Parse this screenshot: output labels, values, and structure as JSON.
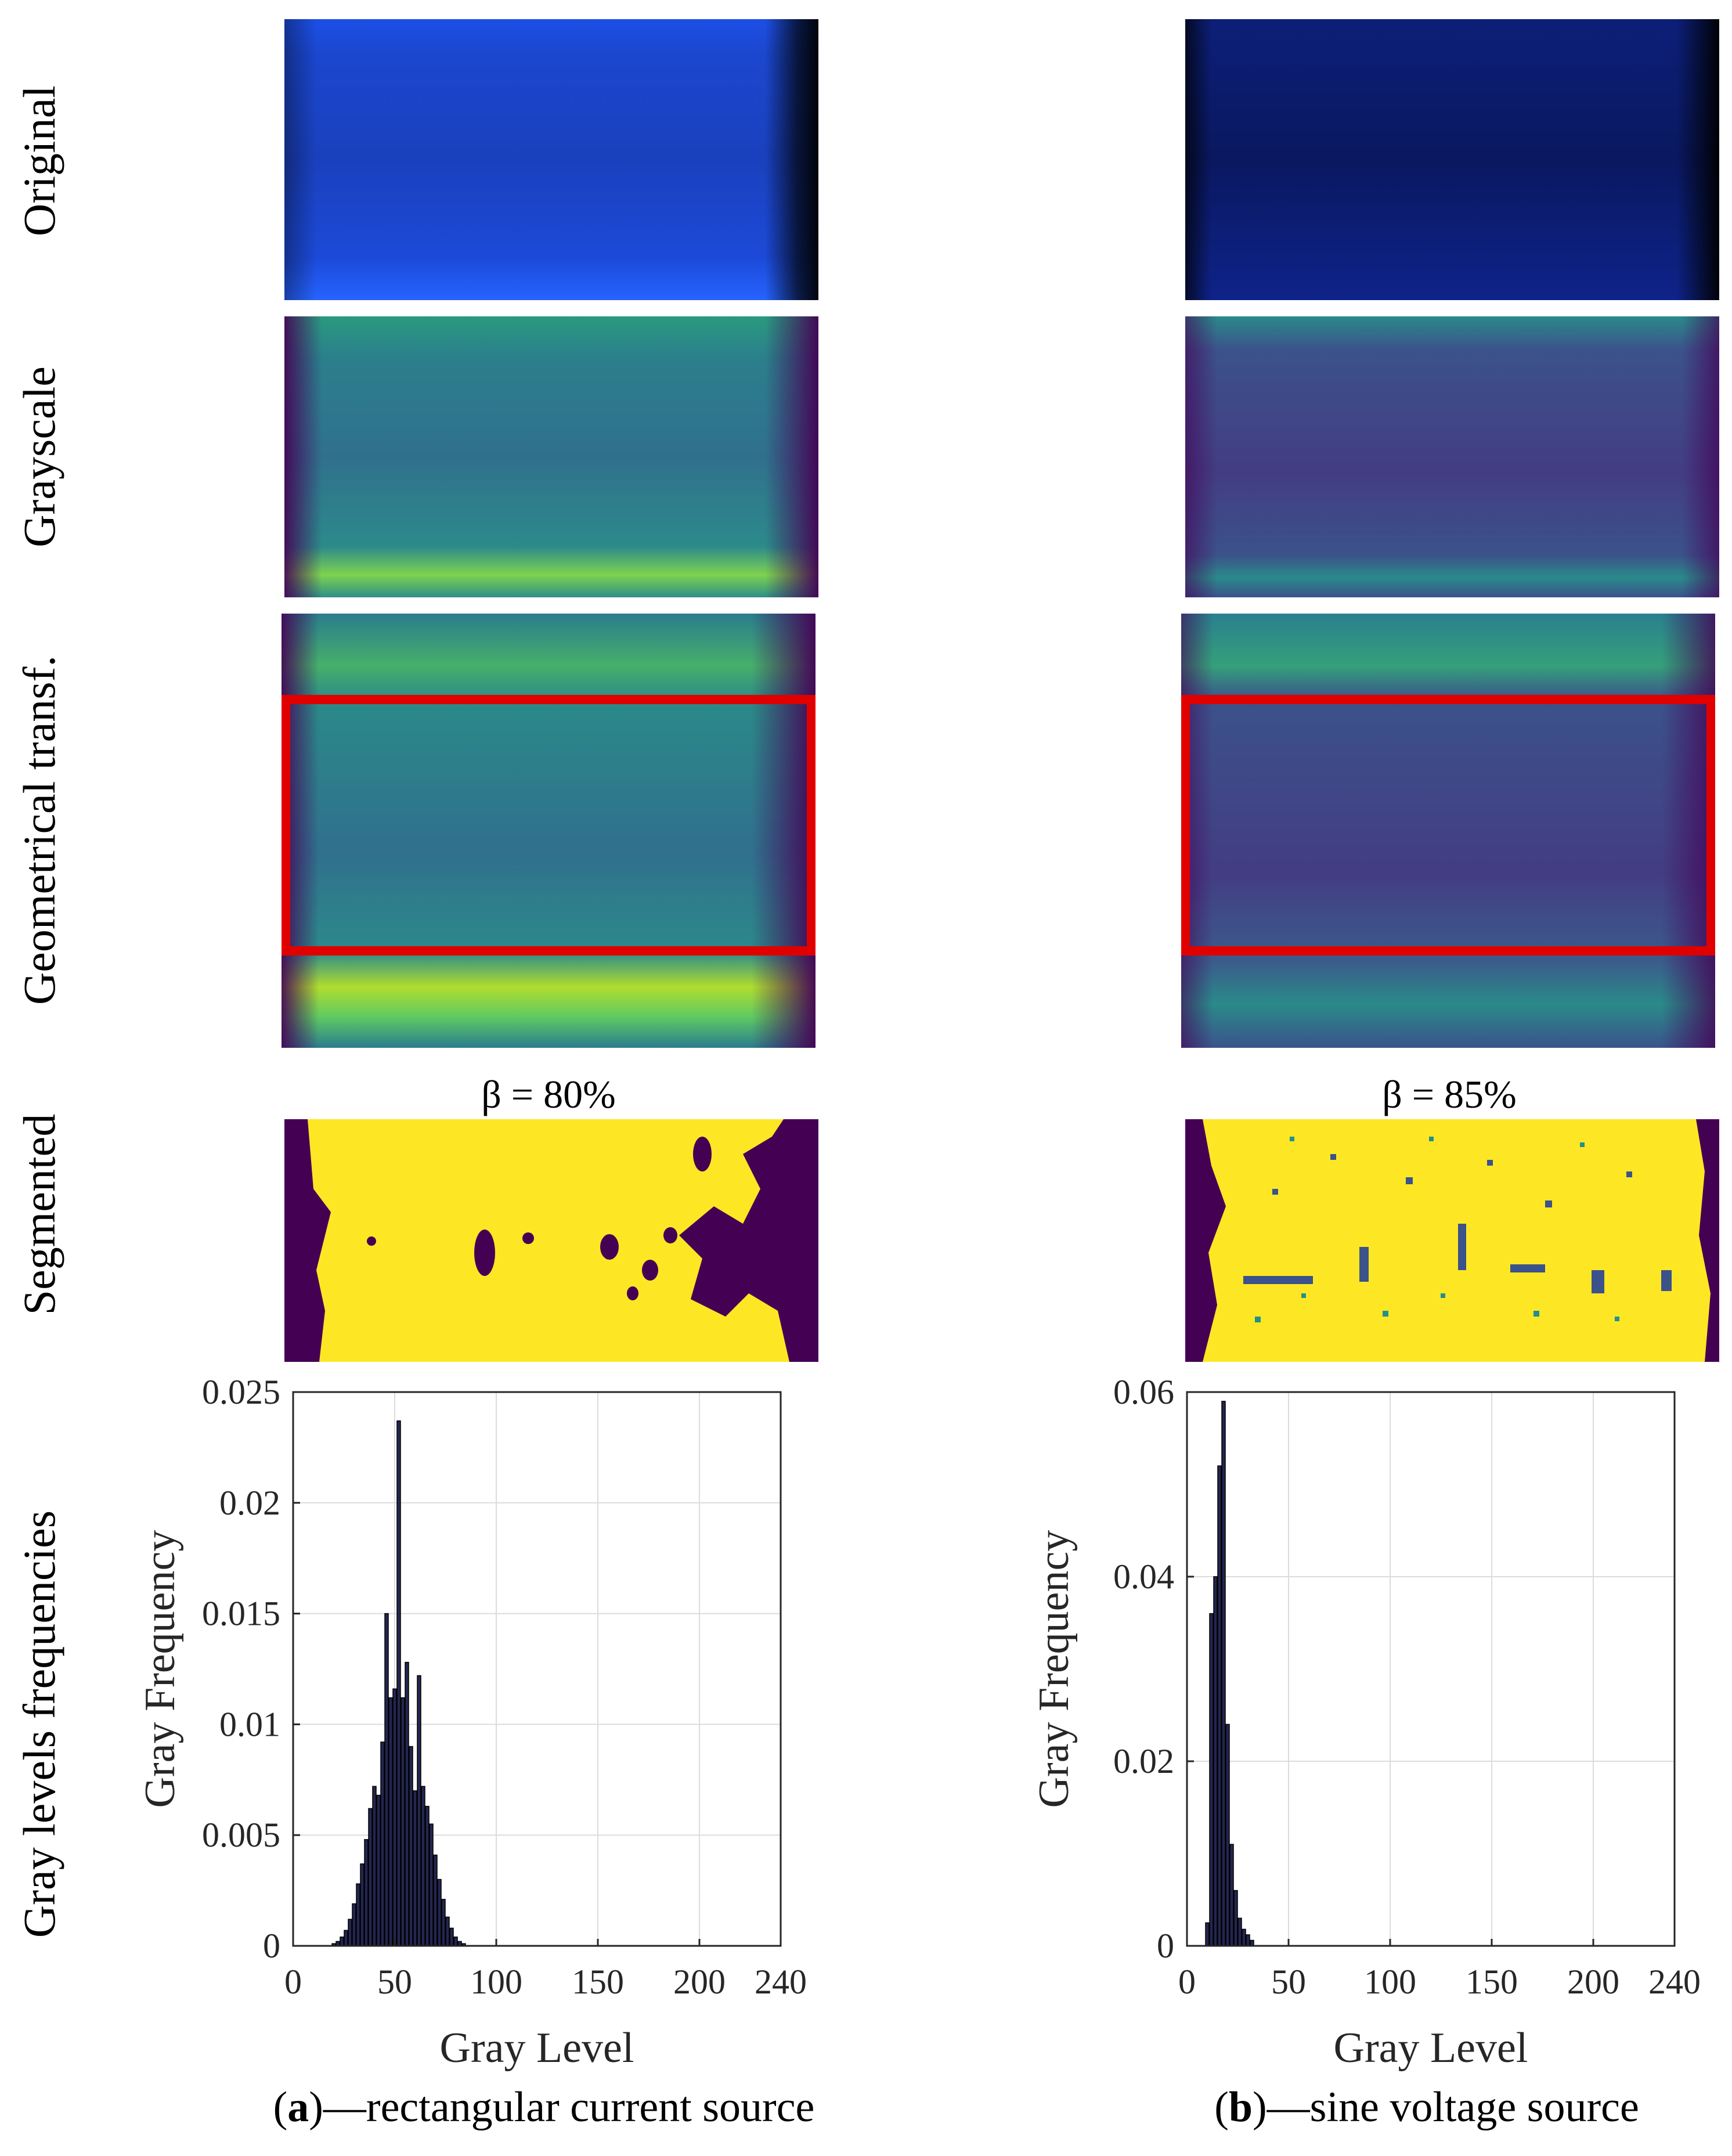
{
  "row_labels": {
    "original": "Original",
    "grayscale": "Grayscale",
    "geometrical": "Geometrical transf.",
    "segmented": "Segmented",
    "histogram": "Gray levels frequencies"
  },
  "columns": {
    "a": {
      "beta": "β = 80%",
      "caption_letter": "a",
      "caption_text": "—rectangular current source"
    },
    "b": {
      "beta": "β = 85%",
      "caption_letter": "b",
      "caption_text": "—sine voltage source"
    }
  },
  "colors": {
    "original_blue": "#1f55f0",
    "original_dark": "#0b1a66",
    "viridis_purple": "#440154",
    "viridis_blue": "#3b528b",
    "viridis_teal": "#21908c",
    "viridis_green": "#5ec962",
    "viridis_yellow": "#fde725",
    "roi_red": "#e00000",
    "bar_fill": "#23264f"
  },
  "chart_data": [
    {
      "type": "bar",
      "panel": "a",
      "xlabel": "Gray Level",
      "ylabel": "Gray Frequency",
      "xlim": [
        0,
        240
      ],
      "ylim": [
        0,
        0.025
      ],
      "xticks": [
        0,
        50,
        100,
        150,
        200,
        240
      ],
      "xtick_labels": [
        "0",
        "50",
        "100",
        "150",
        "200",
        "240"
      ],
      "yticks": [
        0,
        0.005,
        0.01,
        0.015,
        0.02,
        0.025
      ],
      "ytick_labels": [
        "0",
        "0.005",
        "0.01",
        "0.015",
        "0.02",
        "0.025"
      ],
      "grid": true,
      "x": [
        20,
        22,
        24,
        26,
        28,
        30,
        32,
        34,
        36,
        38,
        40,
        42,
        44,
        46,
        48,
        50,
        52,
        54,
        56,
        58,
        60,
        62,
        64,
        66,
        68,
        70,
        72,
        74,
        76,
        78,
        80,
        82,
        84
      ],
      "values": [
        0.0001,
        0.0002,
        0.0004,
        0.0007,
        0.0012,
        0.0019,
        0.0028,
        0.0037,
        0.0048,
        0.0062,
        0.0072,
        0.0068,
        0.0092,
        0.015,
        0.0112,
        0.0116,
        0.0237,
        0.0112,
        0.0128,
        0.009,
        0.007,
        0.0122,
        0.0072,
        0.0063,
        0.0055,
        0.0041,
        0.003,
        0.0021,
        0.0013,
        0.0008,
        0.0004,
        0.0002,
        0.0001
      ]
    },
    {
      "type": "bar",
      "panel": "b",
      "xlabel": "Gray Level",
      "ylabel": "Gray Frequency",
      "xlim": [
        0,
        240
      ],
      "ylim": [
        0,
        0.06
      ],
      "xticks": [
        0,
        50,
        100,
        150,
        200,
        240
      ],
      "xtick_labels": [
        "0",
        "50",
        "100",
        "150",
        "200",
        "240"
      ],
      "yticks": [
        0,
        0.02,
        0.04,
        0.06
      ],
      "ytick_labels": [
        "0",
        "0.02",
        "0.04",
        "0.06"
      ],
      "grid": true,
      "x": [
        10,
        12,
        14,
        16,
        18,
        20,
        22,
        24,
        26,
        28,
        30,
        32
      ],
      "values": [
        0.0025,
        0.036,
        0.04,
        0.052,
        0.059,
        0.024,
        0.011,
        0.006,
        0.003,
        0.0018,
        0.0012,
        0.0006
      ]
    }
  ]
}
